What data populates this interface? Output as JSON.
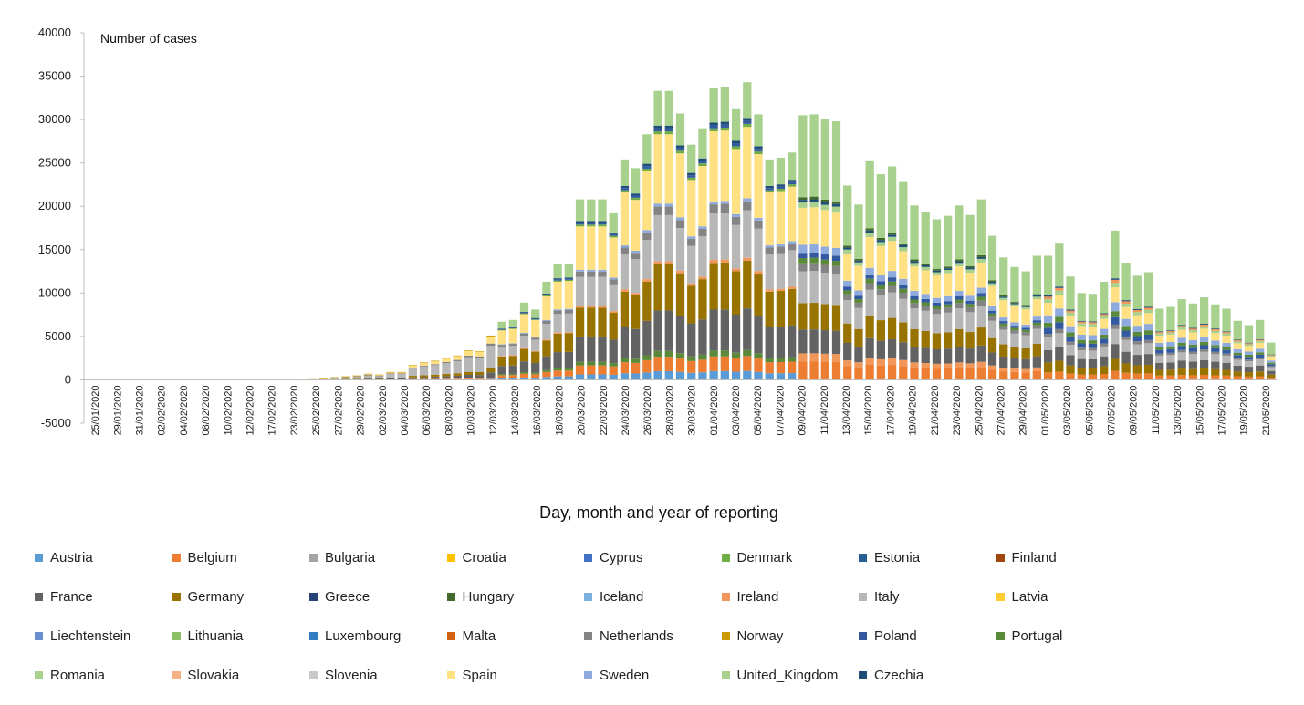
{
  "chart_data": {
    "type": "bar",
    "stacked": true,
    "ylabel": "Number of cases",
    "xlabel": "Day, month and year of reporting",
    "ylim": [
      -5000,
      40000
    ],
    "yticks": [
      "40000",
      "35000",
      "30000",
      "25000",
      "20000",
      "15000",
      "10000",
      "5000",
      "0",
      "-5000"
    ],
    "ytick_values": [
      40000,
      35000,
      30000,
      25000,
      20000,
      15000,
      10000,
      5000,
      0,
      -5000
    ],
    "grid": false,
    "legend_position": "bottom",
    "categories": [
      "25/01/2020",
      "26/01/2020",
      "29/01/2020",
      "30/01/2020",
      "31/01/2020",
      "01/02/2020",
      "02/02/2020",
      "03/02/2020",
      "04/02/2020",
      "05/02/2020",
      "08/02/2020",
      "09/02/2020",
      "10/02/2020",
      "11/02/2020",
      "12/02/2020",
      "13/02/2020",
      "17/02/2020",
      "18/02/2020",
      "23/02/2020",
      "24/02/2020",
      "25/02/2020",
      "26/02/2020",
      "27/02/2020",
      "28/02/2020",
      "29/02/2020",
      "01/03/2020",
      "02/03/2020",
      "03/03/2020",
      "04/03/2020",
      "05/03/2020",
      "06/03/2020",
      "07/03/2020",
      "08/03/2020",
      "09/03/2020",
      "10/03/2020",
      "11/03/2020",
      "12/03/2020",
      "13/03/2020",
      "14/03/2020",
      "15/03/2020",
      "16/03/2020",
      "17/03/2020",
      "18/03/2020",
      "19/03/2020",
      "20/03/2020",
      "21/03/2020",
      "22/03/2020",
      "23/03/2020",
      "24/03/2020",
      "25/03/2020",
      "26/03/2020",
      "27/03/2020",
      "28/03/2020",
      "29/03/2020",
      "30/03/2020",
      "31/03/2020",
      "01/04/2020",
      "02/04/2020",
      "03/04/2020",
      "04/04/2020",
      "05/04/2020",
      "06/04/2020",
      "07/04/2020",
      "08/04/2020",
      "09/04/2020",
      "10/04/2020",
      "11/04/2020",
      "12/04/2020",
      "13/04/2020",
      "14/04/2020",
      "15/04/2020",
      "16/04/2020",
      "17/04/2020",
      "18/04/2020",
      "19/04/2020",
      "20/04/2020",
      "21/04/2020",
      "22/04/2020",
      "23/04/2020",
      "24/04/2020",
      "25/04/2020",
      "26/04/2020",
      "27/04/2020",
      "28/04/2020",
      "29/04/2020",
      "30/04/2020",
      "01/05/2020",
      "02/05/2020",
      "03/05/2020",
      "04/05/2020",
      "05/05/2020",
      "06/05/2020",
      "07/05/2020",
      "08/05/2020",
      "09/05/2020",
      "10/05/2020",
      "11/05/2020",
      "12/05/2020",
      "13/05/2020",
      "14/05/2020",
      "15/05/2020",
      "16/05/2020",
      "17/05/2020",
      "18/05/2020",
      "19/05/2020",
      "20/05/2020",
      "21/05/2020"
    ],
    "x_tick_labels": [
      "25/01/2020",
      "29/01/2020",
      "31/01/2020",
      "02/02/2020",
      "04/02/2020",
      "08/02/2020",
      "10/02/2020",
      "12/02/2020",
      "17/02/2020",
      "23/02/2020",
      "25/02/2020",
      "27/02/2020",
      "29/02/2020",
      "02/03/2020",
      "04/03/2020",
      "06/03/2020",
      "08/03/2020",
      "10/03/2020",
      "12/03/2020",
      "14/03/2020",
      "16/03/2020",
      "18/03/2020",
      "20/03/2020",
      "22/03/2020",
      "24/03/2020",
      "26/03/2020",
      "28/03/2020",
      "30/03/2020",
      "01/04/2020",
      "03/04/2020",
      "05/04/2020",
      "07/04/2020",
      "09/04/2020",
      "11/04/2020",
      "13/04/2020",
      "15/04/2020",
      "17/04/2020",
      "19/04/2020",
      "21/04/2020",
      "23/04/2020",
      "25/04/2020",
      "27/04/2020",
      "29/04/2020",
      "01/05/2020",
      "03/05/2020",
      "05/05/2020",
      "07/05/2020",
      "09/05/2020",
      "11/05/2020",
      "13/05/2020",
      "15/05/2020",
      "17/05/2020",
      "19/05/2020",
      "21/05/2020"
    ],
    "totals": [
      20,
      20,
      20,
      20,
      20,
      20,
      20,
      20,
      20,
      20,
      20,
      20,
      20,
      20,
      20,
      20,
      20,
      20,
      20,
      20,
      60,
      120,
      300,
      400,
      500,
      700,
      600,
      900,
      900,
      1700,
      2000,
      2200,
      2500,
      2800,
      3400,
      3300,
      5100,
      6700,
      6900,
      8900,
      8100,
      11300,
      13300,
      13400,
      20800,
      20800,
      20800,
      19300,
      25400,
      24400,
      28300,
      33300,
      33300,
      30700,
      27100,
      29000,
      33700,
      33800,
      31300,
      34300,
      30600,
      25400,
      25600,
      26200,
      30500,
      30600,
      30100,
      29800,
      22400,
      20200,
      25300,
      23700,
      24600,
      22800,
      20100,
      19400,
      18500,
      18900,
      20100,
      19000,
      20800,
      16600,
      14100,
      13000,
      12500,
      14300,
      14300,
      15800,
      11900,
      10000,
      9900,
      11300,
      17200,
      13500,
      12000,
      12400,
      8200,
      8400,
      9300,
      8800,
      9500,
      8700,
      8200,
      6800,
      6300,
      6900,
      4300
    ],
    "series": [
      {
        "name": "Austria",
        "color": "#5b9bd5"
      },
      {
        "name": "Belgium",
        "color": "#ed7d31"
      },
      {
        "name": "Bulgaria",
        "color": "#a5a5a5"
      },
      {
        "name": "Croatia",
        "color": "#ffc000"
      },
      {
        "name": "Cyprus",
        "color": "#4472c4"
      },
      {
        "name": "Denmark",
        "color": "#70ad47"
      },
      {
        "name": "Estonia",
        "color": "#255e91"
      },
      {
        "name": "Finland",
        "color": "#9e480e"
      },
      {
        "name": "France",
        "color": "#636363"
      },
      {
        "name": "Germany",
        "color": "#997300"
      },
      {
        "name": "Greece",
        "color": "#264478"
      },
      {
        "name": "Hungary",
        "color": "#43682b"
      },
      {
        "name": "Iceland",
        "color": "#7cafdd"
      },
      {
        "name": "Ireland",
        "color": "#f1975a"
      },
      {
        "name": "Italy",
        "color": "#b7b7b7"
      },
      {
        "name": "Latvia",
        "color": "#ffcd33"
      },
      {
        "name": "Liechtenstein",
        "color": "#698ed0"
      },
      {
        "name": "Lithuania",
        "color": "#8cc168"
      },
      {
        "name": "Luxembourg",
        "color": "#327dc2"
      },
      {
        "name": "Malta",
        "color": "#d26012"
      },
      {
        "name": "Netherlands",
        "color": "#848484"
      },
      {
        "name": "Norway",
        "color": "#cc9a00"
      },
      {
        "name": "Poland",
        "color": "#335aa1"
      },
      {
        "name": "Portugal",
        "color": "#5a8a39"
      },
      {
        "name": "Romania",
        "color": "#a9d18e"
      },
      {
        "name": "Slovakia",
        "color": "#f4b183"
      },
      {
        "name": "Slovenia",
        "color": "#c9c9c9"
      },
      {
        "name": "Spain",
        "color": "#ffe083"
      },
      {
        "name": "Sweden",
        "color": "#8faadc"
      },
      {
        "name": "United_Kingdom",
        "color": "#a9d18e"
      },
      {
        "name": "Czechia",
        "color": "#1f4e79"
      }
    ]
  }
}
